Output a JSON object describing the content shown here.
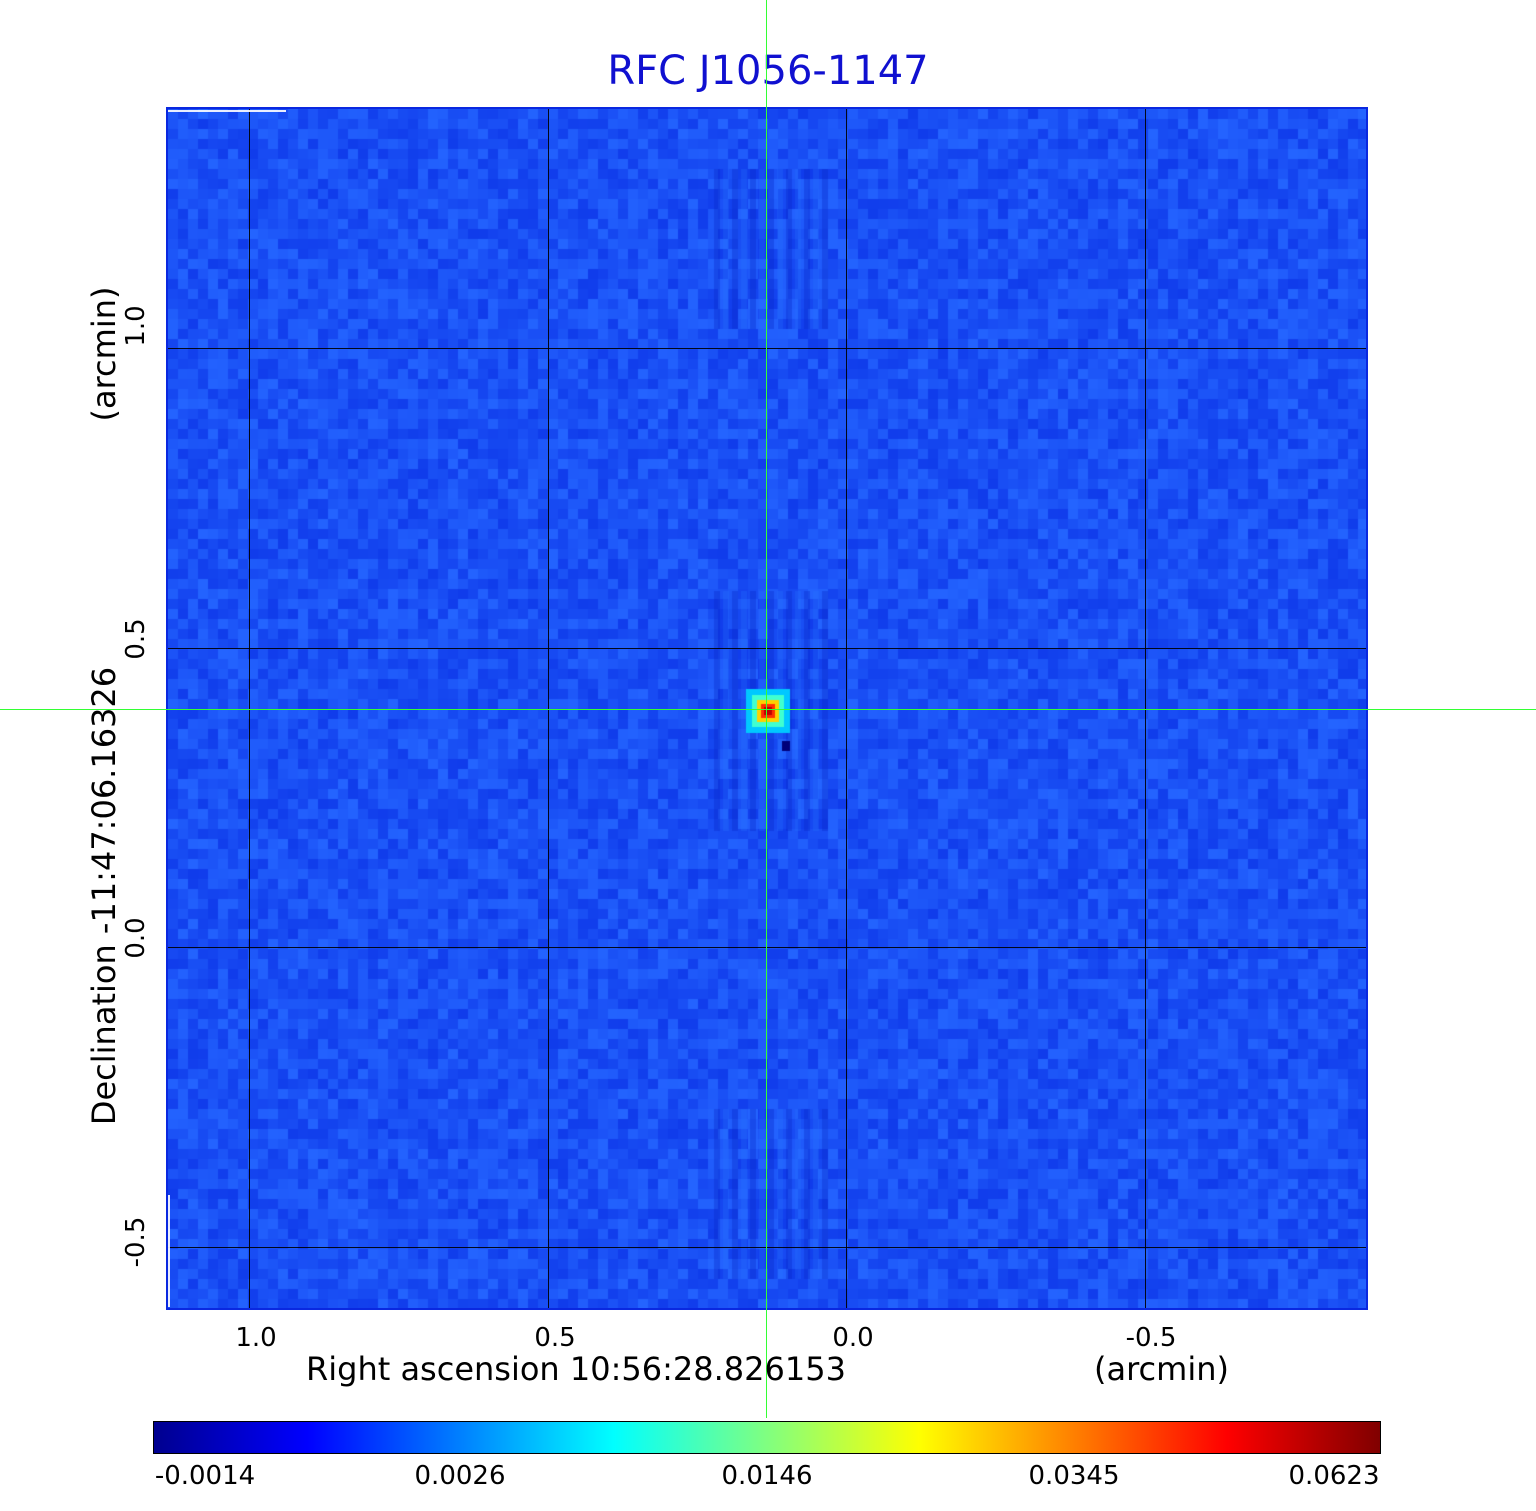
{
  "title": "RFC J1056-1147",
  "x_axis": {
    "label": "Right ascension  10:56:28.826153",
    "unit": "(arcmin)",
    "ticks": [
      "1.0",
      "0.5",
      "0.0",
      "-0.5"
    ]
  },
  "y_axis": {
    "label": "Declination  -11:47:06.16326",
    "unit": "(arcmin)",
    "ticks": [
      "1.0",
      "0.5",
      "0.0",
      "-0.5"
    ]
  },
  "colorbar": {
    "ticks": [
      "-0.0014",
      "0.0026",
      "0.0146",
      "0.0345",
      "0.0623"
    ],
    "colors": [
      "#00008f",
      "#0000ff",
      "#0080ff",
      "#00ffff",
      "#80ff80",
      "#ffff00",
      "#ff8000",
      "#ff0000",
      "#800000"
    ]
  },
  "image": {
    "background_color": "#1a4dff",
    "crosshair_color": "#33ff33",
    "source_peak_color": "#d00000"
  }
}
